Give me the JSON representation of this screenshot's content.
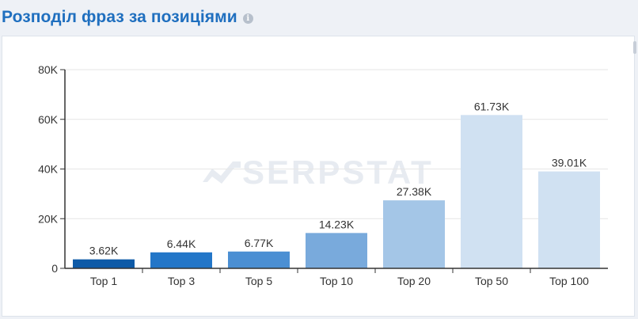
{
  "header": {
    "title": "Розподіл фраз за позиціями",
    "info_icon": "info-icon"
  },
  "watermark": "SERPSTAT",
  "colors": {
    "bars": [
      "#0e5aa7",
      "#2376c8",
      "#4b8fd3",
      "#79aadc",
      "#a4c6e7",
      "#d0e1f2",
      "#d0e1f2"
    ],
    "axis": "#333333",
    "grid": "#e6e6e6"
  },
  "chart_data": {
    "type": "bar",
    "categories": [
      "Top 1",
      "Top 3",
      "Top 5",
      "Top 10",
      "Top 20",
      "Top 50",
      "Top 100"
    ],
    "values": [
      3620,
      6440,
      6770,
      14230,
      27380,
      61730,
      39010
    ],
    "value_labels": [
      "3.62K",
      "6.44K",
      "6.77K",
      "14.23K",
      "27.38K",
      "61.73K",
      "39.01K"
    ],
    "y_ticks": [
      0,
      20000,
      40000,
      60000,
      80000
    ],
    "y_tick_labels": [
      "0",
      "20K",
      "40K",
      "60K",
      "80K"
    ],
    "ylim": [
      0,
      80000
    ],
    "grid": true
  }
}
